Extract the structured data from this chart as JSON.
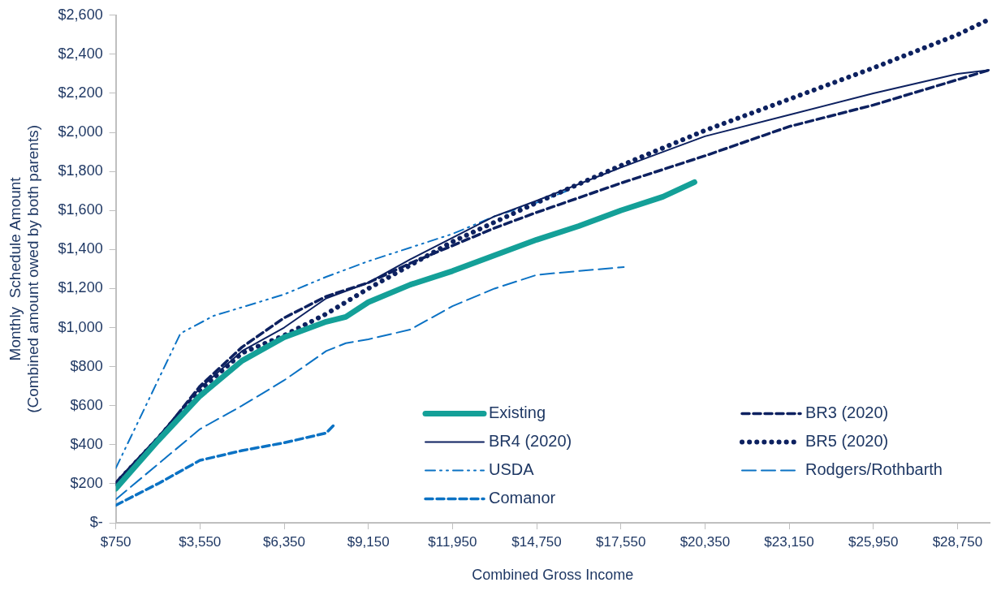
{
  "chart_data": {
    "type": "line",
    "xlabel": "Combined Gross Income",
    "ylabel": "Monthly  Schedule Amount\n(Combined amount owed by both parents)",
    "xlim": [
      750,
      29820
    ],
    "xticks": [
      {
        "value": 750,
        "label": "$750"
      },
      {
        "value": 3550,
        "label": "$3,550"
      },
      {
        "value": 6350,
        "label": "$6,350"
      },
      {
        "value": 9150,
        "label": "$9,150"
      },
      {
        "value": 11950,
        "label": "$11,950"
      },
      {
        "value": 14750,
        "label": "$14,750"
      },
      {
        "value": 17550,
        "label": "$17,550"
      },
      {
        "value": 20350,
        "label": "$20,350"
      },
      {
        "value": 23150,
        "label": "$23,150"
      },
      {
        "value": 25950,
        "label": "$25,950"
      },
      {
        "value": 28750,
        "label": "$28,750"
      }
    ],
    "ylim": [
      0,
      2600
    ],
    "yticks": [
      {
        "value": 0,
        "label": "$-"
      },
      {
        "value": 200,
        "label": "$200"
      },
      {
        "value": 400,
        "label": "$400"
      },
      {
        "value": 600,
        "label": "$600"
      },
      {
        "value": 800,
        "label": "$800"
      },
      {
        "value": 1000,
        "label": "$1,000"
      },
      {
        "value": 1200,
        "label": "$1,200"
      },
      {
        "value": 1400,
        "label": "$1,400"
      },
      {
        "value": 1600,
        "label": "$1,600"
      },
      {
        "value": 1800,
        "label": "$1,800"
      },
      {
        "value": 2000,
        "label": "$2,000"
      },
      {
        "value": 2200,
        "label": "$2,200"
      },
      {
        "value": 2400,
        "label": "$2,400"
      },
      {
        "value": 2600,
        "label": "$2,600"
      }
    ],
    "grid": false,
    "legend": "bottom right",
    "marker": "none",
    "series": [
      {
        "name": "Existing",
        "color": "#14a098",
        "line_style": "solid",
        "x": [
          750,
          2150,
          3550,
          4950,
          6350,
          7750,
          8400,
          9150,
          10550,
          11950,
          13350,
          14750,
          16150,
          17550,
          18950,
          20000
        ],
        "values": [
          175,
          420,
          650,
          830,
          950,
          1030,
          1055,
          1130,
          1220,
          1290,
          1370,
          1450,
          1520,
          1600,
          1670,
          1745
        ]
      },
      {
        "name": "BR3 (2020)",
        "color": "#0d2160",
        "line_style": "dashed",
        "x": [
          750,
          2150,
          3550,
          4950,
          6350,
          7750,
          9150,
          10550,
          11950,
          13350,
          14750,
          17550,
          20350,
          23150,
          25950,
          28750,
          29820
        ],
        "values": [
          200,
          430,
          700,
          900,
          1050,
          1160,
          1230,
          1330,
          1420,
          1510,
          1590,
          1740,
          1880,
          2030,
          2140,
          2270,
          2320
        ]
      },
      {
        "name": "BR4 (2020)",
        "color": "#0d2160",
        "line_style": "solid",
        "x": [
          750,
          2150,
          3550,
          4950,
          6350,
          7750,
          9150,
          10550,
          11950,
          13350,
          14750,
          17550,
          20350,
          23150,
          25950,
          28750,
          29820
        ],
        "values": [
          210,
          440,
          690,
          880,
          1000,
          1150,
          1230,
          1350,
          1460,
          1570,
          1650,
          1820,
          1980,
          2090,
          2200,
          2300,
          2320
        ]
      },
      {
        "name": "BR5 (2020)",
        "color": "#0d2160",
        "line_style": "dotted",
        "x": [
          750,
          2150,
          3550,
          4950,
          6350,
          7750,
          9150,
          10550,
          11950,
          13350,
          14750,
          17550,
          20350,
          23150,
          25950,
          28750,
          29820
        ],
        "values": [
          200,
          430,
          680,
          870,
          960,
          1070,
          1200,
          1320,
          1440,
          1540,
          1640,
          1830,
          2010,
          2170,
          2330,
          2500,
          2580
        ]
      },
      {
        "name": "USDA",
        "color": "#0b72c4",
        "line_style": "dashdot",
        "x": [
          750,
          1500,
          2900,
          4000,
          6350,
          7750,
          9150,
          10550,
          11950,
          13350,
          14750,
          15750
        ],
        "values": [
          280,
          520,
          970,
          1060,
          1170,
          1260,
          1340,
          1410,
          1480,
          1570,
          1640,
          1700
        ]
      },
      {
        "name": "Rodgers/Rothbarth",
        "color": "#0b72c4",
        "line_style": "longdash",
        "x": [
          750,
          3550,
          4950,
          6350,
          7750,
          8400,
          9150,
          10550,
          11950,
          13350,
          14750,
          16150,
          17650
        ],
        "values": [
          120,
          480,
          600,
          730,
          880,
          920,
          940,
          990,
          1110,
          1200,
          1270,
          1290,
          1310
        ]
      },
      {
        "name": "Comanor",
        "color": "#0b72c4",
        "line_style": "dashed",
        "x": [
          750,
          2150,
          3550,
          4950,
          6350,
          7750,
          8000
        ],
        "values": [
          90,
          200,
          320,
          370,
          410,
          460,
          500
        ]
      }
    ]
  }
}
